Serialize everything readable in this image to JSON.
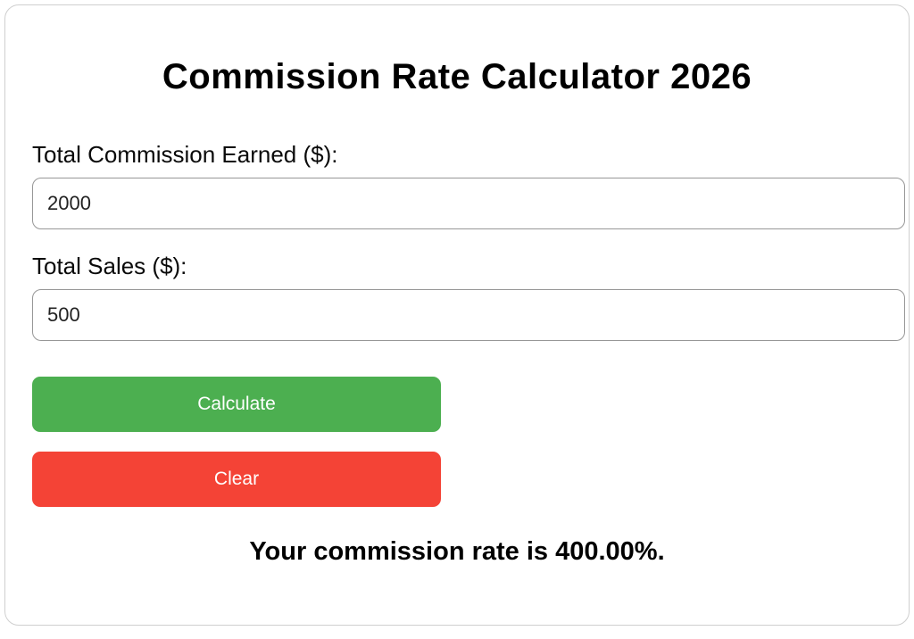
{
  "page": {
    "title": "Commission Rate Calculator 2026"
  },
  "form": {
    "fields": [
      {
        "label": "Total Commission Earned ($):",
        "value": "2000"
      },
      {
        "label": "Total Sales ($):",
        "value": "500"
      }
    ],
    "buttons": {
      "calculate_label": "Calculate",
      "clear_label": "Clear"
    }
  },
  "result": {
    "text": "Your commission rate is 400.00%."
  },
  "colors": {
    "calculate_bg": "#4caf50",
    "clear_bg": "#f44336",
    "button_text": "#ffffff",
    "card_border": "#cfcfcf",
    "input_border": "#979797"
  }
}
